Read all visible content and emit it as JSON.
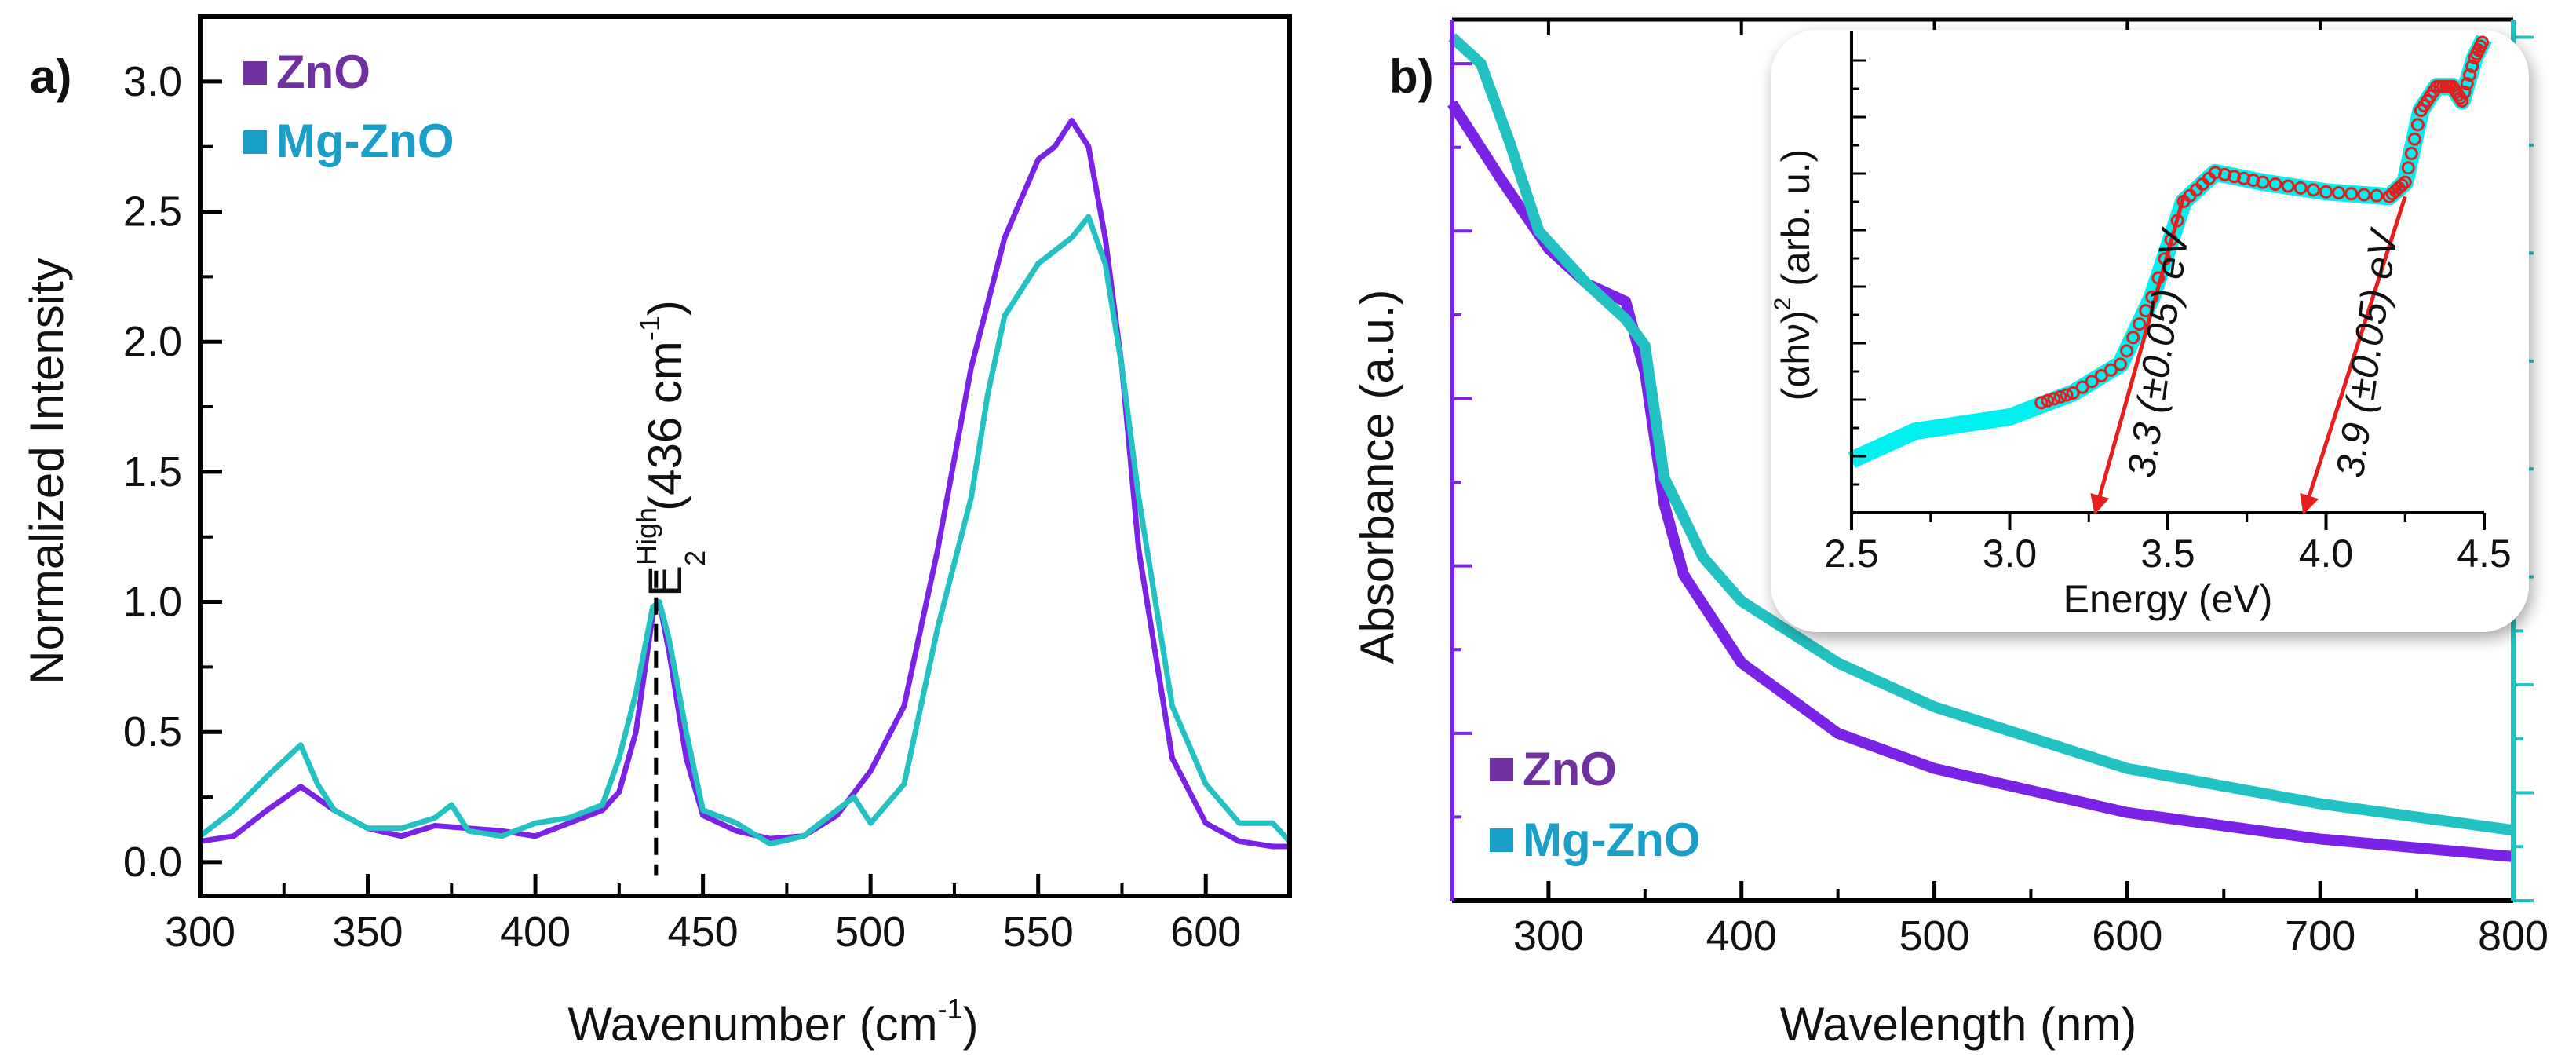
{
  "colors": {
    "zno": "#7a22e6",
    "mgzno": "#22c2c2",
    "zno_legend": "#7030a0",
    "mgzno_legend": "#1aa0c8",
    "inset_zno": "#e02020",
    "inset_mgzno": "#00f0f0",
    "arrow": "#e61e1e"
  },
  "chart_data": [
    {
      "panel_label": "a)",
      "type": "line",
      "xlabel": {
        "main": "Wavenumber (cm",
        "sup": "-1",
        "end": ")"
      },
      "ylabel": "Normalized Intensity",
      "xlim": [
        300,
        625
      ],
      "ylim": [
        -0.13,
        3.25
      ],
      "xticks": [
        "300",
        "350",
        "400",
        "450",
        "500",
        "550",
        "600"
      ],
      "yticks": [
        "0.0",
        "0.5",
        "1.0",
        "1.5",
        "2.0",
        "2.5",
        "3.0"
      ],
      "legend": [
        "ZnO",
        "Mg-ZnO"
      ],
      "legend_placement": "top-left",
      "annotation": {
        "x": 436,
        "base": "E",
        "sub": "2",
        "sup": "High",
        "text": "(436 cm",
        "text_sup": "-1",
        "text_end": ")"
      },
      "series": [
        {
          "name": "ZnO",
          "x": [
            300,
            310,
            320,
            330,
            340,
            350,
            360,
            370,
            380,
            390,
            400,
            410,
            420,
            425,
            430,
            435,
            437,
            440,
            445,
            450,
            460,
            470,
            480,
            490,
            500,
            510,
            520,
            530,
            540,
            550,
            555,
            560,
            565,
            570,
            575,
            580,
            590,
            600,
            610,
            620,
            625
          ],
          "y": [
            0.08,
            0.1,
            0.2,
            0.29,
            0.2,
            0.13,
            0.1,
            0.14,
            0.13,
            0.12,
            0.1,
            0.15,
            0.2,
            0.27,
            0.5,
            0.95,
            1.0,
            0.8,
            0.4,
            0.18,
            0.12,
            0.09,
            0.1,
            0.18,
            0.35,
            0.6,
            1.2,
            1.9,
            2.4,
            2.7,
            2.75,
            2.85,
            2.75,
            2.4,
            1.9,
            1.2,
            0.4,
            0.15,
            0.08,
            0.06,
            0.06
          ]
        },
        {
          "name": "Mg-ZnO",
          "x": [
            300,
            305,
            310,
            320,
            330,
            335,
            340,
            350,
            360,
            370,
            375,
            380,
            390,
            400,
            410,
            420,
            425,
            430,
            435,
            437,
            440,
            445,
            450,
            460,
            470,
            480,
            490,
            495,
            500,
            510,
            520,
            530,
            535,
            540,
            550,
            560,
            565,
            570,
            575,
            580,
            590,
            600,
            610,
            620,
            625
          ],
          "y": [
            0.1,
            0.15,
            0.2,
            0.33,
            0.45,
            0.3,
            0.2,
            0.13,
            0.13,
            0.17,
            0.22,
            0.12,
            0.1,
            0.15,
            0.17,
            0.22,
            0.4,
            0.65,
            0.98,
            1.0,
            0.85,
            0.5,
            0.2,
            0.15,
            0.07,
            0.1,
            0.2,
            0.25,
            0.15,
            0.3,
            0.9,
            1.4,
            1.8,
            2.1,
            2.3,
            2.4,
            2.48,
            2.3,
            1.9,
            1.4,
            0.6,
            0.3,
            0.15,
            0.15,
            0.08
          ]
        }
      ]
    },
    {
      "panel_label": "b)",
      "type": "line",
      "xlabel": "Wavelength (nm)",
      "ylabel": "Absorbance (a.u.)",
      "xlim": [
        250,
        800
      ],
      "ylim": [
        0,
        1
      ],
      "xticks": [
        "300",
        "400",
        "500",
        "600",
        "700",
        "800"
      ],
      "legend": [
        "ZnO",
        "Mg-ZnO"
      ],
      "legend_placement": "bottom-left",
      "series": [
        {
          "name": "ZnO",
          "x": [
            250,
            275,
            300,
            320,
            340,
            350,
            360,
            370,
            400,
            450,
            500,
            600,
            700,
            800
          ],
          "y": [
            0.905,
            0.82,
            0.74,
            0.7,
            0.68,
            0.6,
            0.45,
            0.37,
            0.27,
            0.19,
            0.15,
            0.1,
            0.07,
            0.05
          ]
        },
        {
          "name": "Mg-ZnO",
          "x": [
            250,
            265,
            280,
            295,
            320,
            340,
            350,
            360,
            380,
            400,
            450,
            500,
            600,
            700,
            800
          ],
          "y": [
            0.98,
            0.95,
            0.86,
            0.76,
            0.7,
            0.66,
            0.63,
            0.48,
            0.39,
            0.34,
            0.27,
            0.22,
            0.15,
            0.11,
            0.08
          ]
        }
      ]
    },
    {
      "panel_label": "inset",
      "type": "scatter",
      "xlabel": "Energy (eV)",
      "ylabel": {
        "main": "(αhν)",
        "sup": "2",
        "end": " (arb. u.)"
      },
      "xlim": [
        2.5,
        4.5
      ],
      "ylim": [
        0,
        1
      ],
      "xticks": [
        "2.5",
        "3.0",
        "3.5",
        "4.0",
        "4.5"
      ],
      "series": [
        {
          "name": "ZnO",
          "x": [
            3.1,
            3.2,
            3.35,
            3.45,
            3.55,
            3.65,
            3.8,
            4.0,
            4.2,
            4.25,
            4.3,
            4.35,
            4.4,
            4.43,
            4.47,
            4.5
          ],
          "y": [
            0.23,
            0.25,
            0.31,
            0.45,
            0.65,
            0.71,
            0.69,
            0.67,
            0.66,
            0.69,
            0.84,
            0.89,
            0.89,
            0.86,
            0.95,
            0.99
          ]
        },
        {
          "name": "Mg-ZnO",
          "x": [
            2.5,
            2.7,
            3.0,
            3.2,
            3.35,
            3.45,
            3.55,
            3.65,
            3.8,
            4.0,
            4.2,
            4.25,
            4.3,
            4.35,
            4.4,
            4.43,
            4.47,
            4.5
          ],
          "y": [
            0.11,
            0.17,
            0.2,
            0.25,
            0.31,
            0.45,
            0.65,
            0.71,
            0.69,
            0.67,
            0.66,
            0.69,
            0.84,
            0.89,
            0.89,
            0.86,
            0.95,
            0.99
          ]
        }
      ],
      "annotations": [
        {
          "value": "3.3",
          "text": "3.3 (±0.05) eV",
          "arrow_from": [
            3.55,
            0.66
          ],
          "arrow_to": [
            3.27,
            0
          ]
        },
        {
          "value": "3.9",
          "text": "3.9 (±0.05) eV",
          "arrow_from": [
            4.25,
            0.66
          ],
          "arrow_to": [
            3.93,
            0
          ]
        }
      ]
    }
  ]
}
